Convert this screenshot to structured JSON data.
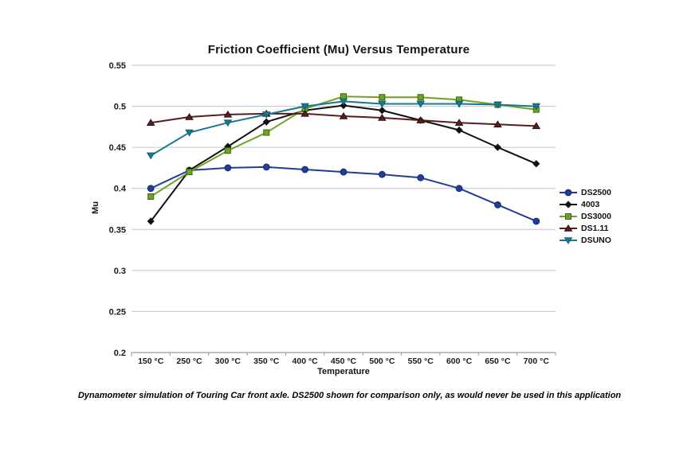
{
  "caption": "Dynamometer simulation of Touring Car front axle. DS2500 shown for comparison only, as would never be used in this application",
  "colors": {
    "gridline": "#c6c6c6",
    "axis_line": "#9b9b9b",
    "tick_text": "#1a1a1a",
    "title_text": "#141414"
  },
  "chart_data": {
    "type": "line",
    "title": "Friction Coefficient (Mu) Versus Temperature",
    "xlabel": "Temperature",
    "ylabel": "Mu",
    "categories": [
      "150 °C",
      "250 °C",
      "300 °C",
      "350 °C",
      "400 °C",
      "450 °C",
      "500 °C",
      "550 °C",
      "600 °C",
      "650 °C",
      "700 °C"
    ],
    "ylim": [
      0.2,
      0.55
    ],
    "yticks": [
      {
        "label": "0.55",
        "value": 0.55
      },
      {
        "label": "0.5",
        "value": 0.5
      },
      {
        "label": "0.45",
        "value": 0.45
      },
      {
        "label": "0.4",
        "value": 0.4
      },
      {
        "label": "0.35",
        "value": 0.35
      },
      {
        "label": "0.3",
        "value": 0.3
      },
      {
        "label": "0.25",
        "value": 0.25
      },
      {
        "label": "0.2",
        "value": 0.2
      }
    ],
    "grid": true,
    "legend_position": "right",
    "series": [
      {
        "name": "DS2500",
        "color": "#1f3d99",
        "marker": "circle",
        "marker_border": "#12265f",
        "values": [
          0.4,
          0.422,
          0.425,
          0.426,
          0.423,
          0.42,
          0.417,
          0.413,
          0.4,
          0.38,
          0.36
        ]
      },
      {
        "name": "4003",
        "color": "#111111",
        "marker": "diamond",
        "marker_border": "#000000",
        "values": [
          0.36,
          0.422,
          0.451,
          0.481,
          0.495,
          0.501,
          0.495,
          0.483,
          0.471,
          0.45,
          0.43
        ]
      },
      {
        "name": "DS3000",
        "color": "#70a226",
        "marker": "square",
        "marker_border": "#3e650e",
        "values": [
          0.39,
          0.42,
          0.446,
          0.468,
          0.497,
          0.512,
          0.511,
          0.511,
          0.508,
          0.502,
          0.496
        ]
      },
      {
        "name": "DS1.11",
        "color": "#571e20",
        "marker": "triangle-up",
        "marker_border": "#1c0708",
        "values": [
          0.48,
          0.487,
          0.49,
          0.491,
          0.491,
          0.488,
          0.486,
          0.483,
          0.48,
          0.478,
          0.476
        ]
      },
      {
        "name": "DSUNO",
        "color": "#17798f",
        "marker": "triangle-down",
        "marker_border": "#0f586b",
        "values": [
          0.44,
          0.468,
          0.48,
          0.49,
          0.5,
          0.506,
          0.503,
          0.503,
          0.503,
          0.502,
          0.5
        ]
      }
    ]
  }
}
